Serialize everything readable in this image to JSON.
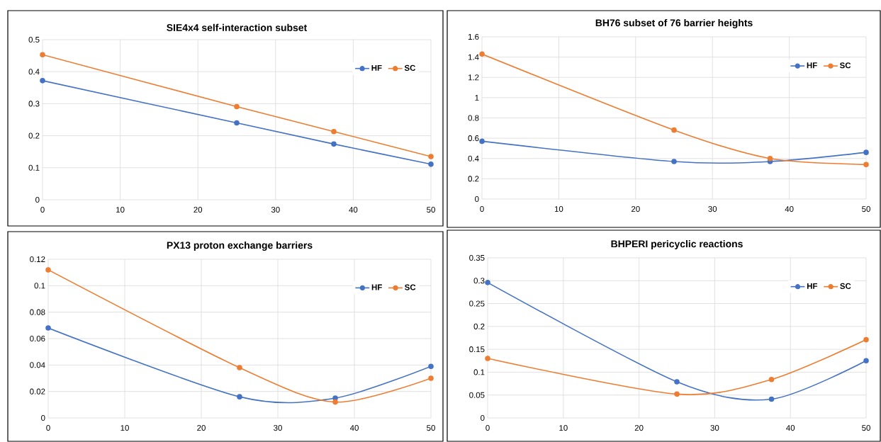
{
  "chart_data": [
    {
      "type": "line",
      "title": "SIE4x4 self-interaction subset",
      "x": [
        0,
        25,
        37.5,
        50
      ],
      "xlim": [
        0,
        50
      ],
      "xticks": [
        0,
        10,
        20,
        30,
        40,
        50
      ],
      "ylim": [
        0,
        0.5
      ],
      "yticks": [
        0,
        0.1,
        0.2,
        0.3,
        0.4,
        0.5
      ],
      "grid": true,
      "legend": "top right",
      "marker": "circle",
      "series": [
        {
          "name": "HF",
          "color": "#4472c4",
          "values": [
            0.372,
            0.24,
            0.174,
            0.111
          ]
        },
        {
          "name": "SC",
          "color": "#ed7d31",
          "values": [
            0.453,
            0.291,
            0.213,
            0.135
          ]
        }
      ]
    },
    {
      "type": "line",
      "title": "BH76 subset of 76 barrier heights",
      "x": [
        0,
        25,
        37.5,
        50
      ],
      "xlim": [
        0,
        50
      ],
      "xticks": [
        0,
        10,
        20,
        30,
        40,
        50
      ],
      "ylim": [
        0,
        1.6
      ],
      "yticks": [
        0,
        0.2,
        0.4,
        0.6,
        0.8,
        1,
        1.2,
        1.4,
        1.6
      ],
      "grid": true,
      "legend": "top right",
      "marker": "circle",
      "series": [
        {
          "name": "HF",
          "color": "#4472c4",
          "values": [
            0.57,
            0.37,
            0.37,
            0.46
          ]
        },
        {
          "name": "SC",
          "color": "#ed7d31",
          "values": [
            1.43,
            0.68,
            0.4,
            0.34
          ]
        }
      ]
    },
    {
      "type": "line",
      "title": "PX13 proton exchange barriers",
      "x": [
        0,
        25,
        37.5,
        50
      ],
      "xlim": [
        0,
        50
      ],
      "xticks": [
        0,
        10,
        20,
        30,
        40,
        50
      ],
      "ylim": [
        0,
        0.12
      ],
      "yticks": [
        0,
        0.02,
        0.04,
        0.06,
        0.08,
        0.1,
        0.12
      ],
      "grid": true,
      "legend": "top right",
      "marker": "circle",
      "series": [
        {
          "name": "HF",
          "color": "#4472c4",
          "values": [
            0.068,
            0.016,
            0.015,
            0.039
          ]
        },
        {
          "name": "SC",
          "color": "#ed7d31",
          "values": [
            0.112,
            0.038,
            0.012,
            0.03
          ]
        }
      ]
    },
    {
      "type": "line",
      "title": "BHPERI pericyclic reactions",
      "x": [
        0,
        25,
        37.5,
        50
      ],
      "xlim": [
        0,
        50
      ],
      "xticks": [
        0,
        10,
        20,
        30,
        40,
        50
      ],
      "ylim": [
        0,
        0.35
      ],
      "yticks": [
        0,
        0.05,
        0.1,
        0.15,
        0.2,
        0.25,
        0.3,
        0.35
      ],
      "grid": true,
      "legend": "top right",
      "marker": "circle",
      "series": [
        {
          "name": "HF",
          "color": "#4472c4",
          "values": [
            0.296,
            0.079,
            0.041,
            0.125
          ]
        },
        {
          "name": "SC",
          "color": "#ed7d31",
          "values": [
            0.13,
            0.052,
            0.084,
            0.171
          ]
        }
      ]
    }
  ]
}
